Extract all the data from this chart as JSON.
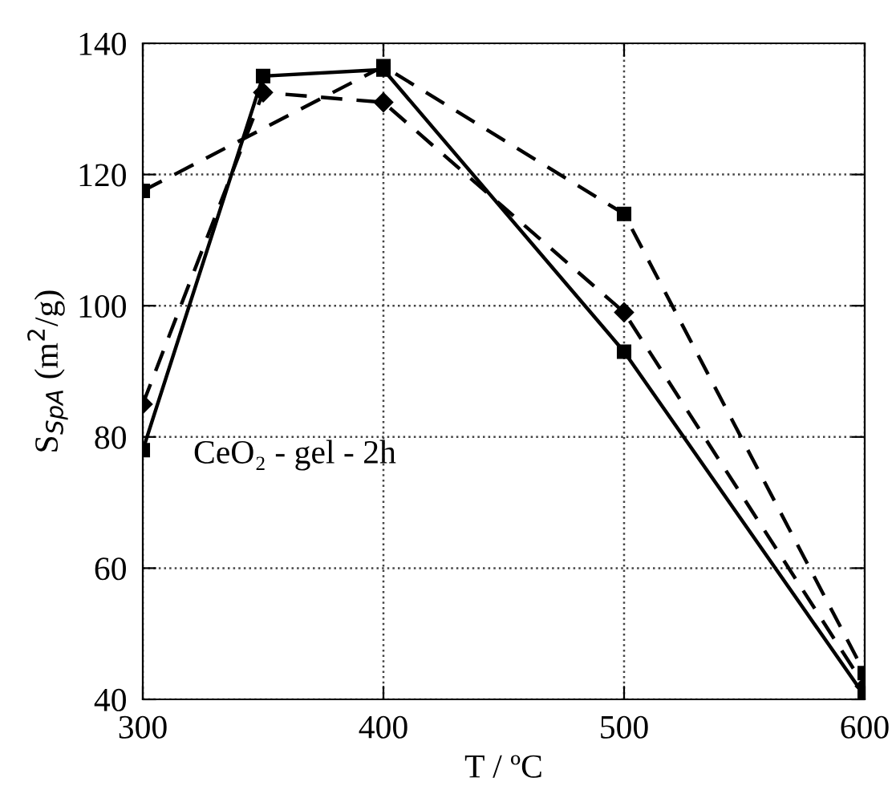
{
  "chart_data": {
    "type": "line",
    "xlabel": "T / ºC",
    "ylabel": "S$_{SpA}$ (m$^{2}$/g)",
    "x": [
      300,
      350,
      400,
      500,
      600
    ],
    "series": [
      {
        "color": "#000000",
        "marker": "square",
        "line_style": "solid",
        "values": [
          78,
          135,
          136,
          93,
          40.5
        ]
      },
      {
        "color": "#000000",
        "marker": "square",
        "line_style": "dashed",
        "values": [
          117.5,
          null,
          136.5,
          114,
          44
        ]
      },
      {
        "color": "#000000",
        "marker": "diamond",
        "line_style": "dashed",
        "values": [
          85,
          132.5,
          131,
          99,
          42
        ]
      }
    ],
    "xlim": [
      300,
      600
    ],
    "xticks": [
      300,
      400,
      500,
      600
    ],
    "ylim": [
      40,
      140
    ],
    "yticks": [
      40,
      60,
      80,
      100,
      120,
      140
    ],
    "grid": true,
    "annotations": [
      "CeO₂ - gel - 2h"
    ]
  }
}
